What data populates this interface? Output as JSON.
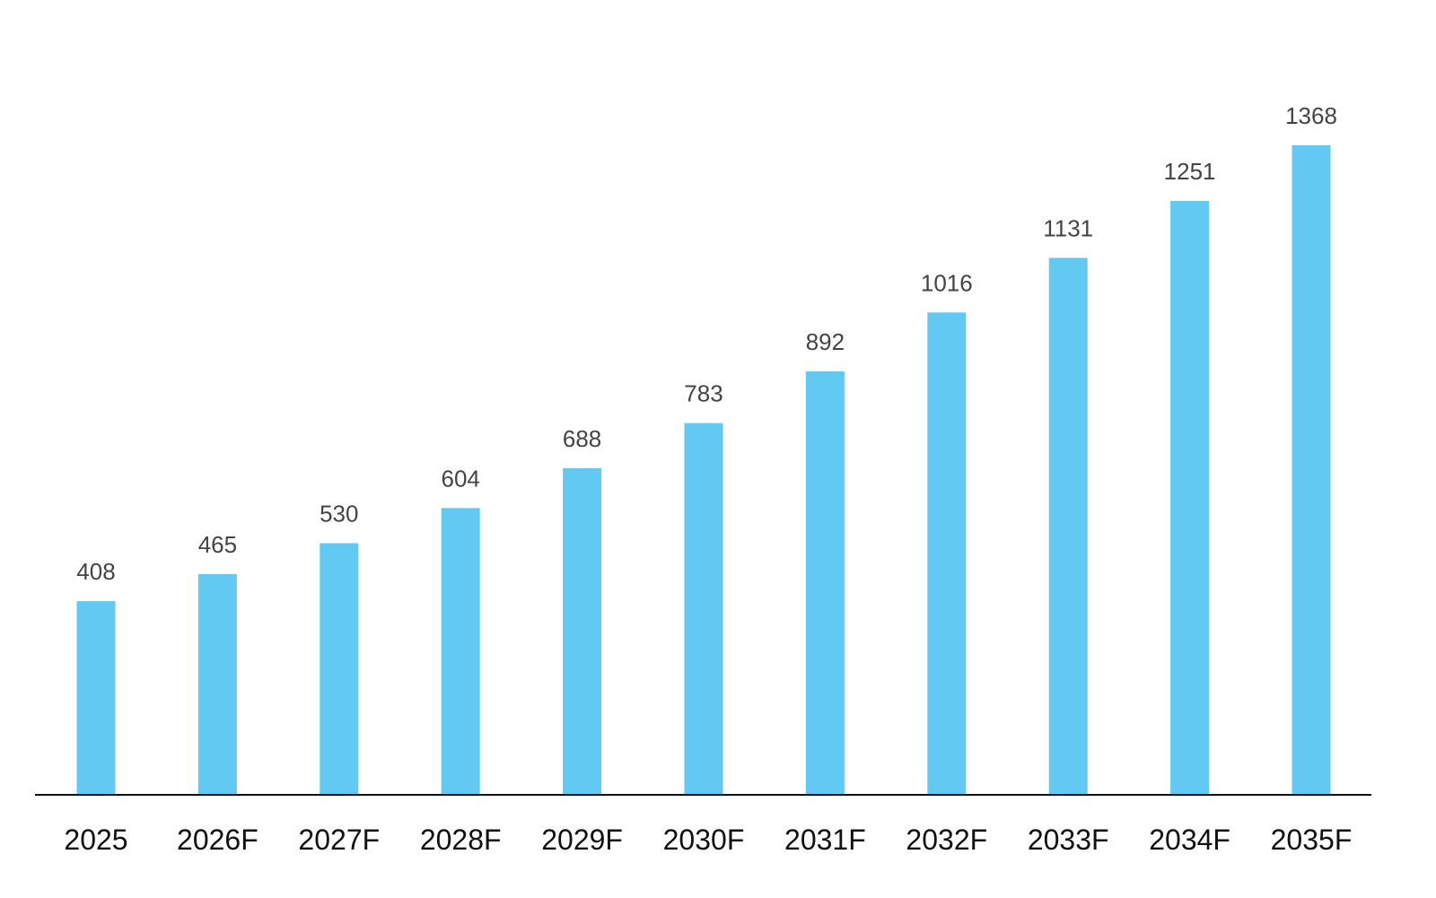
{
  "chart_data": {
    "type": "bar",
    "categories": [
      "2025",
      "2026F",
      "2027F",
      "2028F",
      "2029F",
      "2030F",
      "2031F",
      "2032F",
      "2033F",
      "2034F",
      "2035F"
    ],
    "values": [
      408,
      465,
      530,
      604,
      688,
      783,
      892,
      1016,
      1131,
      1251,
      1368
    ],
    "title": "",
    "xlabel": "",
    "ylabel": "",
    "ylim": [
      0,
      1368
    ],
    "grid": false,
    "data_labels": true,
    "bar_color": "#62CAF2",
    "axis_color": "#111111",
    "label_color": "#444444"
  }
}
